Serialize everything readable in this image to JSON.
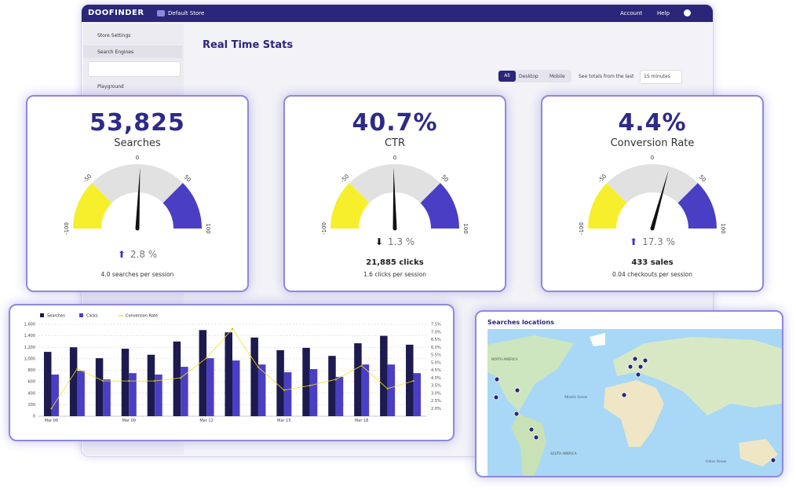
{
  "app": {
    "logo": "DOOFINDER",
    "store": "Default Store",
    "nav": [
      "Account",
      "Help"
    ],
    "sidebar": [
      "Store Settings",
      "Search Engines",
      "Playground"
    ],
    "page_title": "Real Time Stats",
    "filters": [
      "All",
      "Desktop",
      "Mobile"
    ],
    "period_label": "See totals from the last",
    "period": "15 minutes"
  },
  "cards": [
    {
      "value": "53,825",
      "label": "Searches",
      "range": [
        -100,
        100
      ],
      "ticks": [
        -100,
        -50,
        0,
        50,
        100
      ],
      "bands": [
        {
          "from": -100,
          "to": -50,
          "color": "#f7ef2c"
        },
        {
          "from": -50,
          "to": 50,
          "color": "#e1e1e1"
        },
        {
          "from": 50,
          "to": 100,
          "color": "#4a3fc4"
        }
      ],
      "change": {
        "value": 2.8,
        "label": "2.8 %"
      },
      "detail": "4.0 searches per session"
    },
    {
      "value": "40.7%",
      "label": "CTR",
      "range": [
        -100,
        100
      ],
      "ticks": [
        -100,
        -50,
        0,
        50,
        100
      ],
      "bands": [
        {
          "from": -100,
          "to": -50,
          "color": "#f7ef2c"
        },
        {
          "from": -50,
          "to": 50,
          "color": "#e1e1e1"
        },
        {
          "from": 50,
          "to": 100,
          "color": "#4a3fc4"
        }
      ],
      "change": {
        "value": -1.3,
        "label": "1.3 %"
      },
      "count": "21,885 clicks",
      "detail": "1.6 clicks per session"
    },
    {
      "value": "4.4%",
      "label": "Conversion Rate",
      "range": [
        -100,
        100
      ],
      "ticks": [
        -100,
        -50,
        0,
        50,
        100
      ],
      "bands": [
        {
          "from": -100,
          "to": -50,
          "color": "#f7ef2c"
        },
        {
          "from": -50,
          "to": 50,
          "color": "#e1e1e1"
        },
        {
          "from": 50,
          "to": 100,
          "color": "#4a3fc4"
        }
      ],
      "change": {
        "value": 17.3,
        "label": "17.3 %"
      },
      "count": "433 sales",
      "detail": "0.04 checkouts per session"
    }
  ],
  "chart_data": {
    "type": "bar",
    "categories": [
      "Mar 06",
      null,
      null,
      "Mar 09",
      null,
      null,
      "Mar 12",
      null,
      null,
      "Mar 15",
      null,
      null,
      "Mar 18",
      null,
      null
    ],
    "series": [
      {
        "name": "Searches",
        "color": "#1c1a4e",
        "values": [
          1120,
          1200,
          1010,
          1175,
          1070,
          1300,
          1500,
          1460,
          1370,
          1150,
          1190,
          1050,
          1270,
          1400,
          1245
        ]
      },
      {
        "name": "Clicks",
        "color": "#4a3fc4",
        "values": [
          725,
          790,
          640,
          750,
          725,
          860,
          1010,
          970,
          900,
          765,
          820,
          685,
          900,
          900,
          750
        ]
      },
      {
        "name": "Conversion Rate",
        "color": "#f2e21c",
        "type": "line",
        "axis": "y2",
        "values": [
          2.0,
          4.6,
          3.8,
          3.8,
          3.8,
          4.0,
          5.3,
          7.2,
          4.7,
          3.2,
          3.5,
          3.9,
          4.8,
          3.3,
          3.8
        ]
      }
    ],
    "ylim": [
      0,
      1600
    ],
    "yticks": [
      0,
      200,
      400,
      600,
      800,
      {
        "value": 1000,
        "label": "1,000"
      },
      {
        "value": 1200,
        "label": "1,200"
      },
      {
        "value": 1400,
        "label": "1,400"
      },
      {
        "value": 1600,
        "label": "1,600"
      }
    ],
    "y2lim": [
      1.5,
      7.5
    ],
    "y2ticks": [
      {
        "value": 2.0,
        "label": "2.0%"
      },
      {
        "value": 2.5,
        "label": "2.5%"
      },
      {
        "value": 3.0,
        "label": "3.0%"
      },
      {
        "value": 3.5,
        "label": "3.5%"
      },
      {
        "value": 4.0,
        "label": "4.0%"
      },
      {
        "value": 4.5,
        "label": "4.5%"
      },
      {
        "value": 5.0,
        "label": "5.0%"
      },
      {
        "value": 5.5,
        "label": "5.5%"
      },
      {
        "value": 6.0,
        "label": "6.0%"
      },
      {
        "value": 6.5,
        "label": "6.5%"
      },
      {
        "value": 7.0,
        "label": "7.0%"
      },
      {
        "value": 7.5,
        "label": "7.5%"
      }
    ],
    "grid": true
  },
  "map": {
    "title": "Searches locations",
    "labels": [
      "NORTH AMERICA",
      "SOUTH AMERICA",
      "Atlantic Ocean",
      "Indian Ocean"
    ]
  }
}
